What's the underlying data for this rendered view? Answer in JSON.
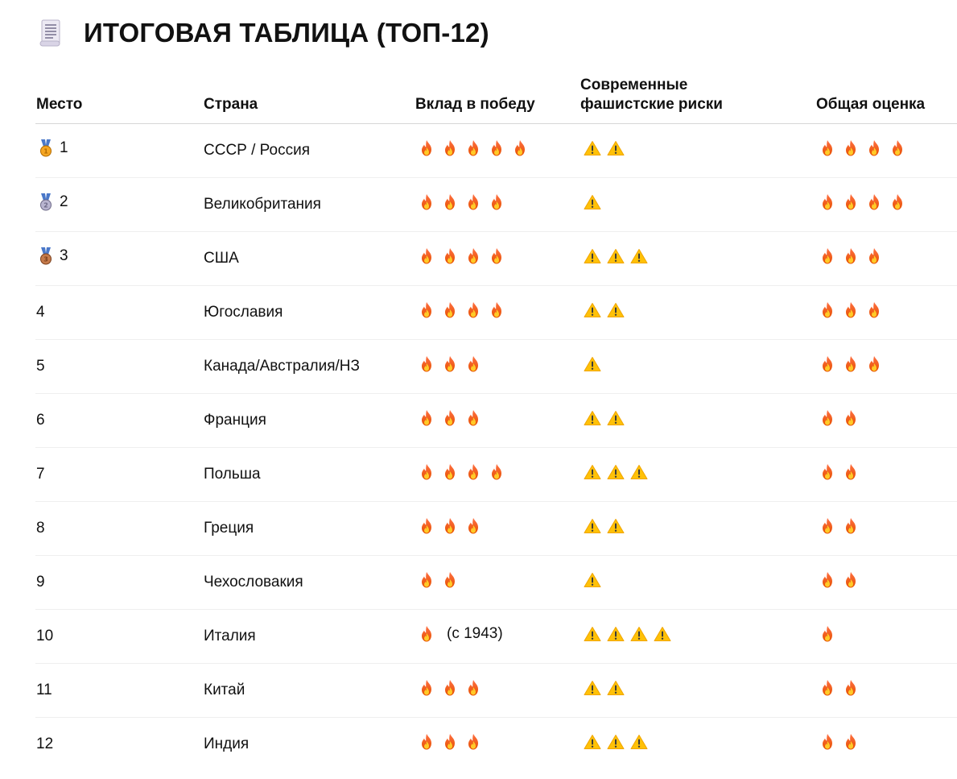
{
  "title": "ИТОГОВАЯ ТАБЛИЦА (ТОП-12)",
  "title_icon": "scroll-icon",
  "colors": {
    "fire": "#f57c00",
    "warn": "#ffc107"
  },
  "headers": [
    "Место",
    "Страна",
    "Вклад в победу",
    "Современные фашистские риски",
    "Общая оценка"
  ],
  "rows": [
    {
      "rank": "1",
      "medal": "gold",
      "country": "СССР / Россия",
      "contribution": 5,
      "risk": 2,
      "score": 4
    },
    {
      "rank": "2",
      "medal": "silver",
      "country": "Великобритания",
      "contribution": 4,
      "risk": 1,
      "score": 4
    },
    {
      "rank": "3",
      "medal": "bronze",
      "country": "США",
      "contribution": 4,
      "risk": 3,
      "score": 3
    },
    {
      "rank": "4",
      "country": "Югославия",
      "contribution": 4,
      "risk": 2,
      "score": 3
    },
    {
      "rank": "5",
      "country": "Канада/Австралия/НЗ",
      "contribution": 3,
      "risk": 1,
      "score": 3
    },
    {
      "rank": "6",
      "country": "Франция",
      "contribution": 3,
      "risk": 2,
      "score": 2
    },
    {
      "rank": "7",
      "country": "Польша",
      "contribution": 4,
      "risk": 3,
      "score": 2
    },
    {
      "rank": "8",
      "country": "Греция",
      "contribution": 3,
      "risk": 2,
      "score": 2
    },
    {
      "rank": "9",
      "country": "Чехословакия",
      "contribution": 2,
      "risk": 1,
      "score": 2
    },
    {
      "rank": "10",
      "country": "Италия",
      "contribution": 1,
      "contribution_note": "(с 1943)",
      "risk": 4,
      "score": 1
    },
    {
      "rank": "11",
      "country": "Китай",
      "contribution": 3,
      "risk": 2,
      "score": 2
    },
    {
      "rank": "12",
      "country": "Индия",
      "contribution": 3,
      "risk": 3,
      "score": 2
    }
  ]
}
